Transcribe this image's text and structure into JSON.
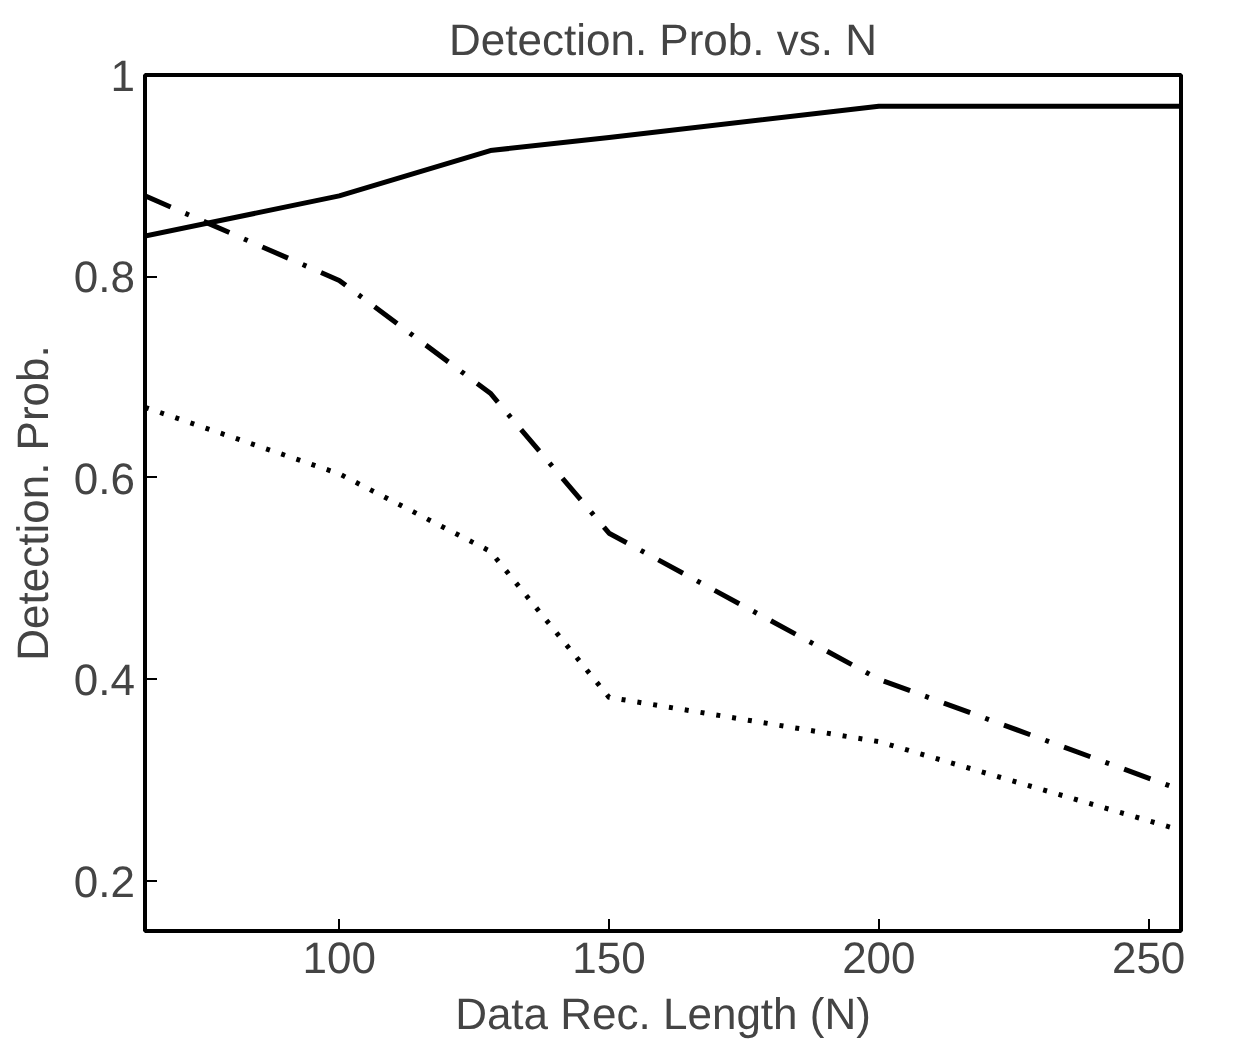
{
  "chart_data": {
    "type": "line",
    "title": "Detection. Prob. vs. N",
    "xlabel": "Data Rec. Length (N)",
    "ylabel": "Detection. Prob.",
    "x": [
      64,
      100,
      128,
      150,
      200,
      256
    ],
    "series": [
      {
        "color": "#000000",
        "line_style": "solid",
        "values": [
          0.84,
          0.88,
          0.925,
          0.938,
          0.969,
          0.969
        ]
      },
      {
        "color": "#000000",
        "line_style": "dashdot",
        "values": [
          0.88,
          0.796,
          0.684,
          0.545,
          0.4,
          0.29
        ]
      },
      {
        "color": "#000000",
        "line_style": "dotted",
        "values": [
          0.67,
          0.604,
          0.527,
          0.382,
          0.338,
          0.25
        ]
      }
    ],
    "xlim": [
      64,
      256
    ],
    "ylim": [
      0.15,
      1
    ],
    "xticks": [
      100,
      150,
      200,
      250
    ],
    "yticks": [
      0.2,
      0.4,
      0.6,
      0.8,
      1
    ],
    "grid": false,
    "marker": "none"
  }
}
